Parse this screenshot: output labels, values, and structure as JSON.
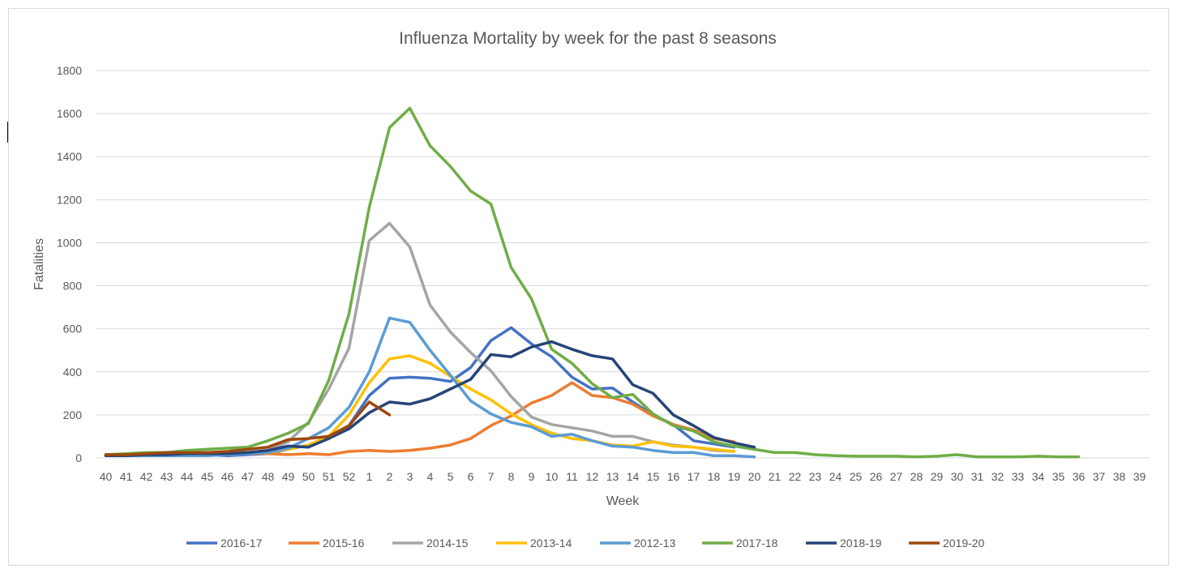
{
  "chart_data": {
    "type": "line",
    "title": "Influenza Mortality by week for the past 8 seasons",
    "xlabel": "Week",
    "ylabel": "Fatalities",
    "ylim": [
      0,
      1800
    ],
    "yticks": [
      0,
      200,
      400,
      600,
      800,
      1000,
      1200,
      1400,
      1600,
      1800
    ],
    "grid": true,
    "legend_position": "bottom",
    "categories": [
      "40",
      "41",
      "42",
      "43",
      "44",
      "45",
      "46",
      "47",
      "48",
      "49",
      "50",
      "51",
      "52",
      "1",
      "2",
      "3",
      "4",
      "5",
      "6",
      "7",
      "8",
      "9",
      "10",
      "11",
      "12",
      "13",
      "14",
      "15",
      "16",
      "17",
      "18",
      "19",
      "20",
      "21",
      "22",
      "23",
      "24",
      "25",
      "26",
      "27",
      "28",
      "29",
      "30",
      "31",
      "32",
      "33",
      "34",
      "35",
      "36",
      "37",
      "38",
      "39"
    ],
    "series": [
      {
        "name": "2016-17",
        "color": "#4472c4",
        "values": [
          15,
          15,
          15,
          15,
          15,
          15,
          10,
          15,
          20,
          40,
          60,
          100,
          150,
          290,
          370,
          375,
          370,
          355,
          420,
          545,
          605,
          530,
          470,
          375,
          320,
          325,
          260,
          200,
          155,
          80,
          65,
          50,
          null,
          null,
          null,
          null,
          null,
          null,
          null,
          null,
          null,
          null,
          null,
          null,
          null,
          null,
          null,
          null,
          null,
          null,
          null,
          null
        ]
      },
      {
        "name": "2015-16",
        "color": "#ed7d31",
        "values": [
          10,
          15,
          15,
          20,
          20,
          25,
          20,
          20,
          20,
          15,
          20,
          15,
          30,
          35,
          30,
          35,
          45,
          60,
          90,
          150,
          195,
          255,
          290,
          350,
          290,
          280,
          250,
          195,
          155,
          130,
          90,
          75,
          null,
          null,
          null,
          null,
          null,
          null,
          null,
          null,
          null,
          null,
          null,
          null,
          null,
          null,
          null,
          null,
          null,
          null,
          null,
          null
        ]
      },
      {
        "name": "2014-15",
        "color": "#a5a5a5",
        "values": [
          10,
          10,
          15,
          20,
          20,
          20,
          25,
          25,
          35,
          75,
          165,
          320,
          510,
          1010,
          1090,
          980,
          710,
          585,
          490,
          405,
          285,
          190,
          155,
          140,
          125,
          100,
          100,
          75,
          60,
          50,
          35,
          30,
          null,
          null,
          null,
          null,
          null,
          null,
          null,
          null,
          null,
          null,
          null,
          null,
          null,
          null,
          null,
          null,
          null,
          null,
          null,
          null
        ]
      },
      {
        "name": "2013-14",
        "color": "#ffc000",
        "values": [
          10,
          10,
          15,
          15,
          15,
          20,
          20,
          25,
          25,
          40,
          60,
          100,
          200,
          350,
          460,
          475,
          440,
          380,
          320,
          270,
          205,
          155,
          115,
          90,
          80,
          60,
          55,
          75,
          55,
          50,
          40,
          30,
          null,
          null,
          null,
          null,
          null,
          null,
          null,
          null,
          null,
          null,
          null,
          null,
          null,
          null,
          null,
          null,
          null,
          null,
          null,
          null
        ]
      },
      {
        "name": "2012-13",
        "color": "#5b9bd5",
        "values": [
          10,
          10,
          10,
          10,
          10,
          10,
          15,
          20,
          25,
          45,
          90,
          140,
          235,
          400,
          650,
          630,
          500,
          385,
          265,
          205,
          165,
          145,
          100,
          110,
          80,
          55,
          50,
          35,
          25,
          25,
          10,
          10,
          5,
          null,
          null,
          null,
          null,
          null,
          null,
          null,
          null,
          null,
          null,
          null,
          null,
          null,
          null,
          null,
          null,
          null,
          null,
          null
        ]
      },
      {
        "name": "2017-18",
        "color": "#70ad47",
        "values": [
          15,
          20,
          25,
          25,
          35,
          40,
          45,
          50,
          80,
          115,
          160,
          360,
          670,
          1165,
          1535,
          1625,
          1450,
          1355,
          1240,
          1180,
          885,
          740,
          505,
          440,
          345,
          280,
          295,
          205,
          150,
          125,
          75,
          55,
          40,
          25,
          25,
          15,
          10,
          8,
          8,
          8,
          5,
          8,
          15,
          5,
          5,
          5,
          8,
          5,
          5,
          null,
          null,
          null
        ]
      },
      {
        "name": "2018-19",
        "color": "#264478",
        "values": [
          10,
          10,
          15,
          15,
          20,
          20,
          20,
          25,
          35,
          55,
          50,
          90,
          135,
          210,
          260,
          250,
          275,
          320,
          365,
          480,
          470,
          515,
          540,
          505,
          475,
          460,
          340,
          300,
          200,
          150,
          95,
          70,
          50,
          null,
          null,
          null,
          null,
          null,
          null,
          null,
          null,
          null,
          null,
          null,
          null,
          null,
          null,
          null,
          null,
          null,
          null,
          null
        ]
      },
      {
        "name": "2019-20",
        "color": "#9e480e",
        "values": [
          15,
          15,
          20,
          25,
          25,
          25,
          30,
          40,
          50,
          85,
          90,
          100,
          150,
          260,
          200,
          null,
          null,
          null,
          null,
          null,
          null,
          null,
          null,
          null,
          null,
          null,
          null,
          null,
          null,
          null,
          null,
          null,
          null,
          null,
          null,
          null,
          null,
          null,
          null,
          null,
          null,
          null,
          null,
          null,
          null,
          null,
          null,
          null,
          null,
          null,
          null,
          null
        ]
      }
    ]
  }
}
